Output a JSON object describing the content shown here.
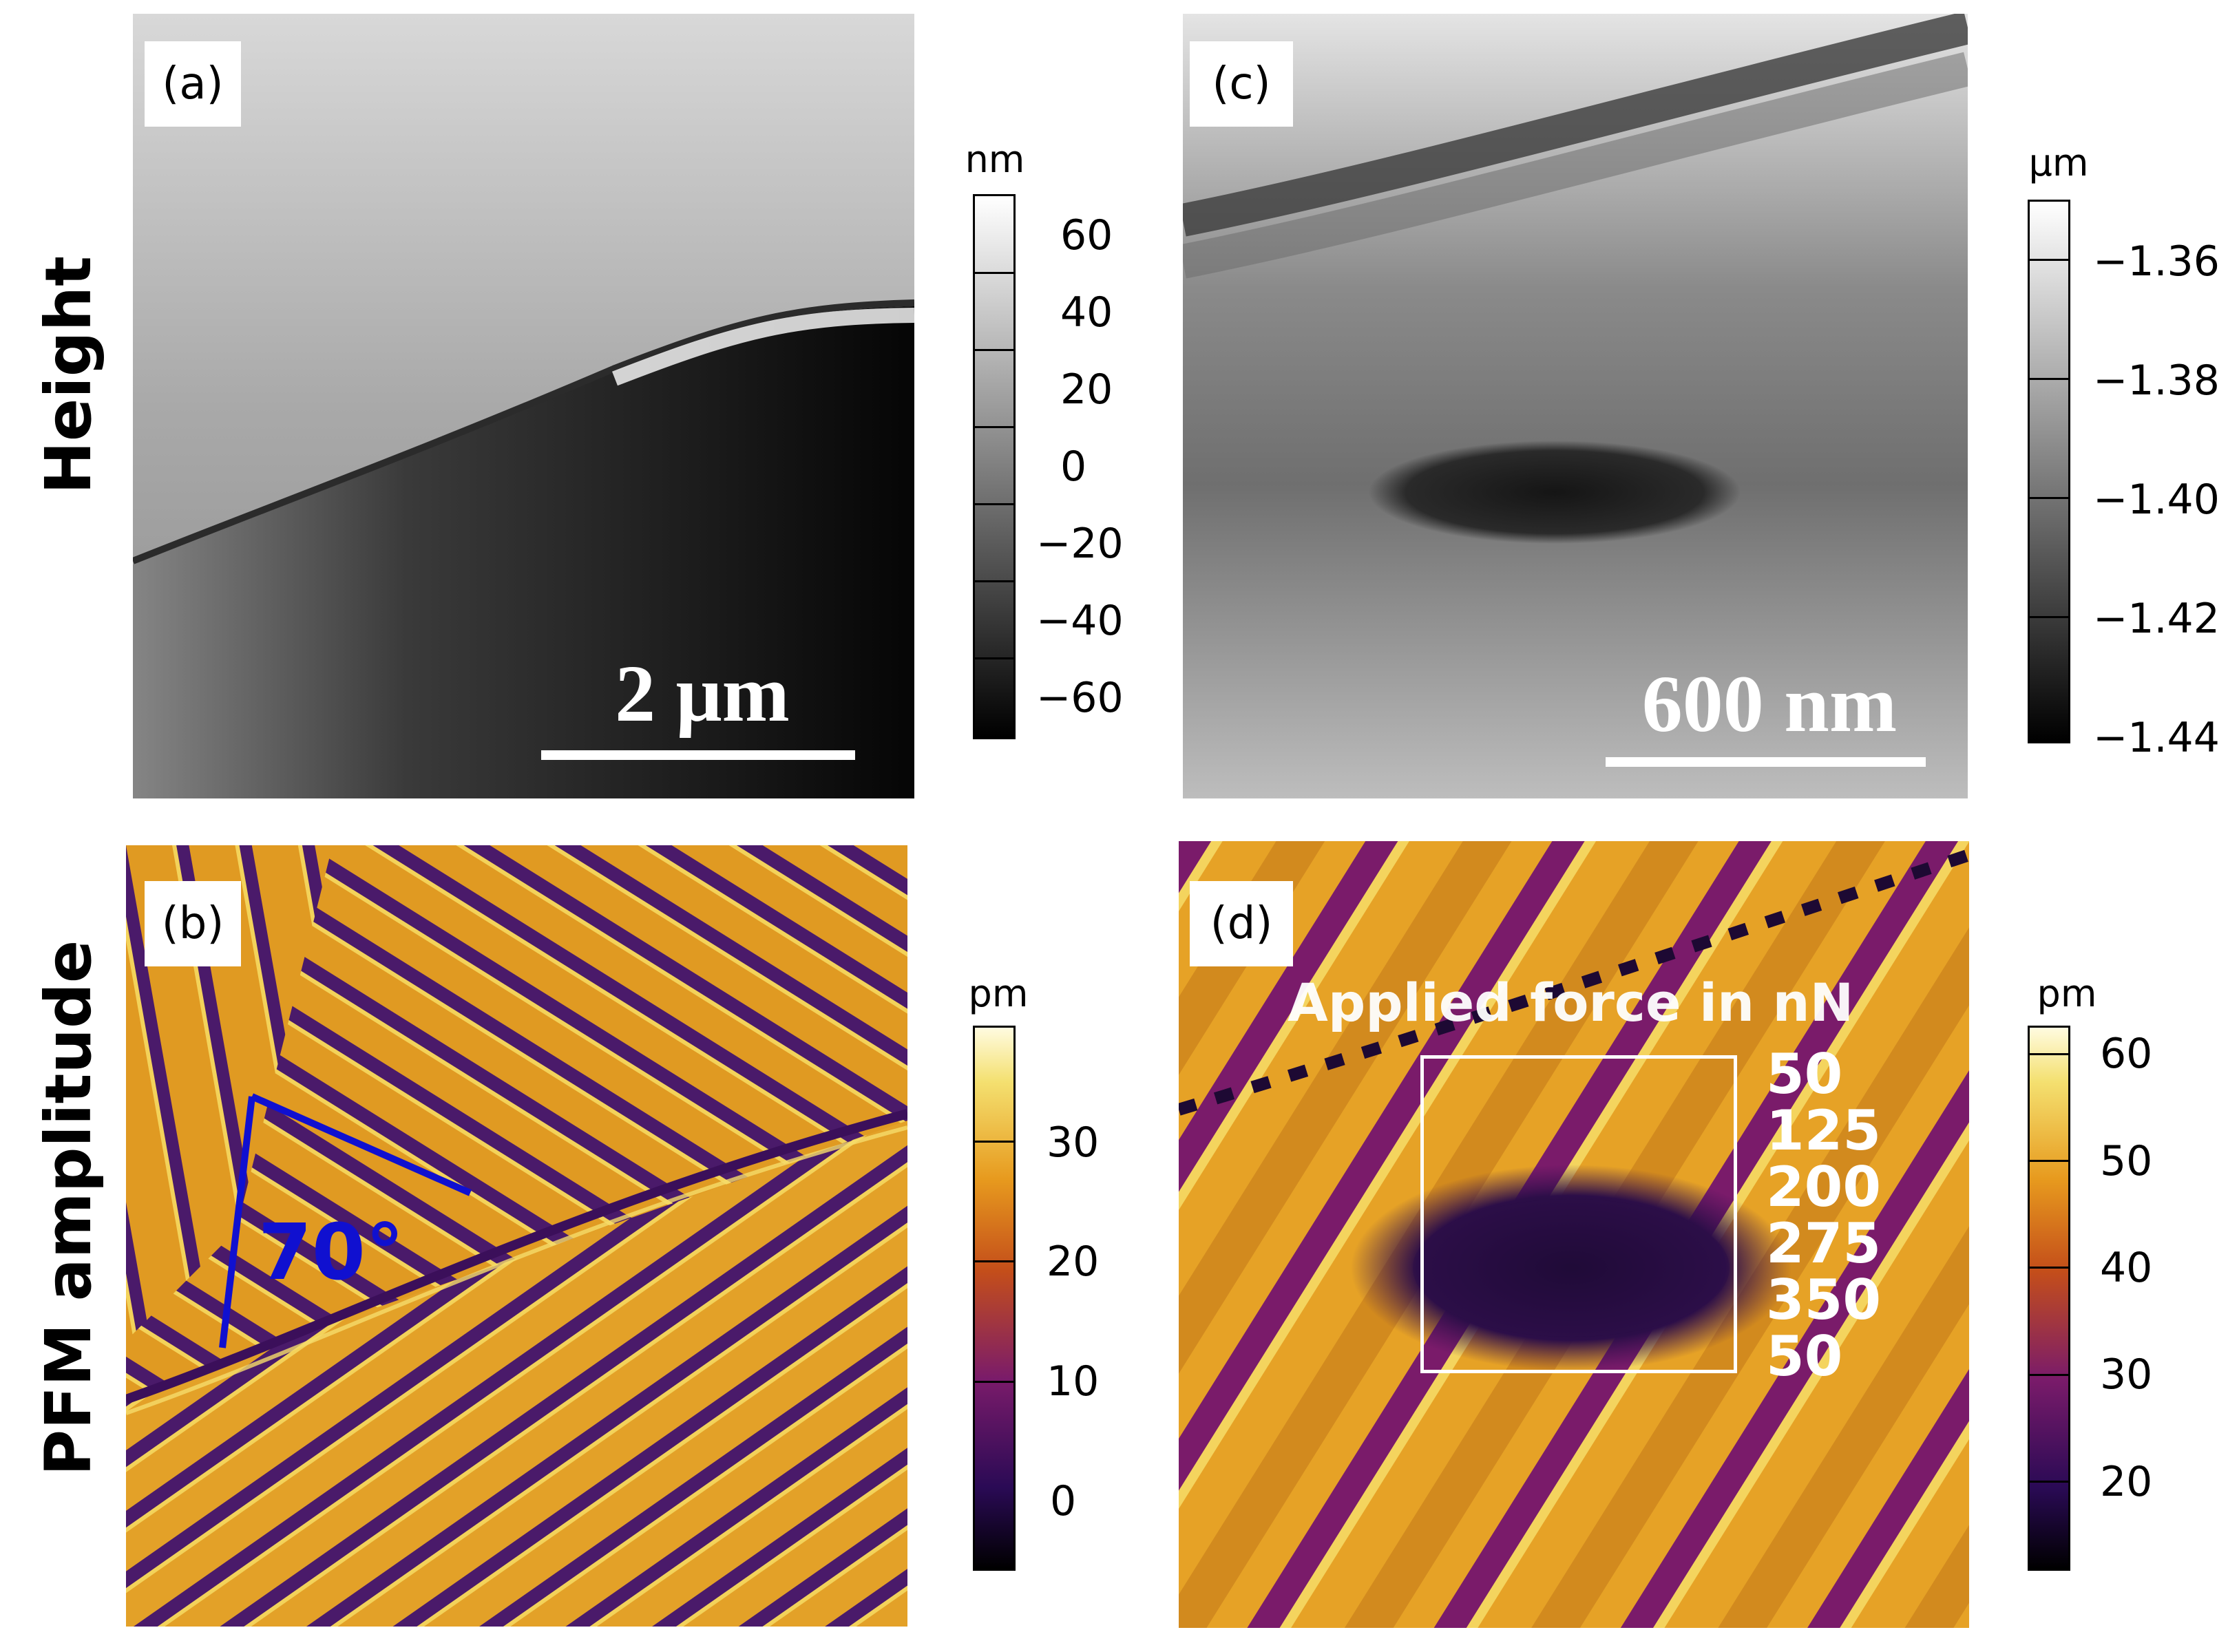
{
  "row_labels": {
    "top": "Height",
    "bottom": "PFM amplitude"
  },
  "panels": {
    "a": {
      "tag": "(a)",
      "scalebar": "2 μm",
      "colorbar": {
        "unit": "nm",
        "ticks": [
          "60",
          "40",
          "20",
          "0",
          "−20",
          "−40",
          "−60"
        ],
        "colors": [
          "#000000",
          "#ffffff"
        ]
      }
    },
    "b": {
      "tag": "(b)",
      "angle": "70°",
      "colorbar": {
        "unit": "pm",
        "ticks": [
          "30",
          "20",
          "10",
          "0"
        ],
        "colors": [
          "#000000",
          "#2a0a55",
          "#7a1b6a",
          "#c44e1a",
          "#e79a1e",
          "#f4e070",
          "#fffbe0"
        ]
      }
    },
    "c": {
      "tag": "(c)",
      "scalebar": "600 nm",
      "colorbar": {
        "unit": "μm",
        "ticks": [
          "−1.36",
          "−1.38",
          "−1.40",
          "−1.42",
          "−1.44"
        ],
        "colors": [
          "#000000",
          "#ffffff"
        ]
      }
    },
    "d": {
      "tag": "(d)",
      "force_title": "Applied force in nN",
      "force_values": [
        "50",
        "125",
        "200",
        "275",
        "350",
        "50"
      ],
      "colorbar": {
        "unit": "pm",
        "ticks": [
          "60",
          "50",
          "40",
          "30",
          "20"
        ],
        "colors": [
          "#000000",
          "#2a0a55",
          "#7a1b6a",
          "#c44e1a",
          "#e79a1e",
          "#f4e070",
          "#fffbe0"
        ]
      }
    }
  }
}
